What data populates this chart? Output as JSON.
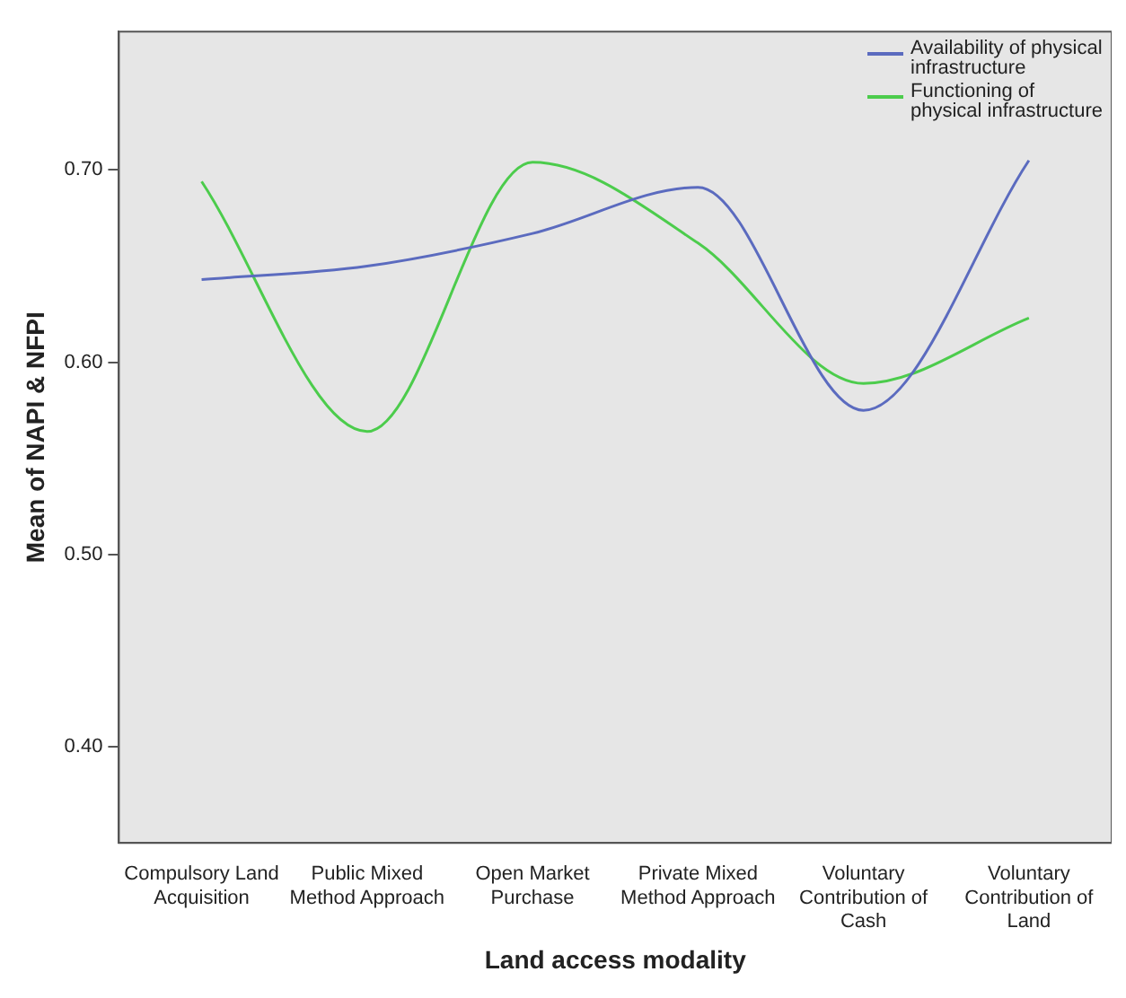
{
  "chart_data": {
    "type": "line",
    "xlabel": "Land access modality",
    "ylabel": "Mean of NAPI & NFPI",
    "categories": [
      "Compulsory Land Acquisition",
      "Public Mixed Method Approach",
      "Open Market Purchase",
      "Private Mixed Method Approach",
      "Voluntary Contribution of Cash",
      "Voluntary Contribution of Land"
    ],
    "series": [
      {
        "name": "Availability of physical infrastructure",
        "color": "#5b6bbf",
        "values": [
          0.643,
          0.65,
          0.667,
          0.691,
          0.575,
          0.705
        ]
      },
      {
        "name": "Functioning of physical infrastructure",
        "color": "#4ccc4c",
        "values": [
          0.694,
          0.564,
          0.704,
          0.662,
          0.589,
          0.623
        ]
      }
    ],
    "ylim": [
      0.35,
      0.772
    ],
    "yticks": [
      {
        "value": 0.4,
        "label": "0.40"
      },
      {
        "value": 0.5,
        "label": "0.50"
      },
      {
        "value": 0.6,
        "label": "0.60"
      },
      {
        "value": 0.7,
        "label": "0.70"
      }
    ],
    "grid": false,
    "legend": "top right",
    "marker": "none",
    "line_style": "solid"
  }
}
